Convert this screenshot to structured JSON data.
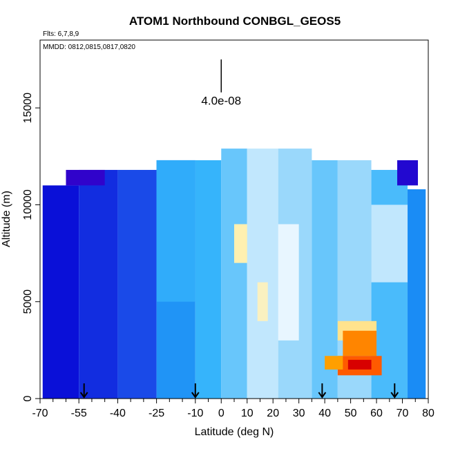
{
  "chart_data": {
    "type": "heatmap",
    "title": "ATOM1 Northbound CONBGL_GEOS5",
    "flights_label": "Flts: 6,7,8,9",
    "dates_label": "MMDD: 0812,0815,0817,0820",
    "xlabel": "Latitude (deg N)",
    "ylabel": "Altitude (m)",
    "xlim": [
      -70,
      80
    ],
    "ylim": [
      0,
      18500
    ],
    "x_ticks": [
      -70,
      -55,
      -40,
      -25,
      -10,
      0,
      10,
      20,
      30,
      40,
      50,
      60,
      70,
      80
    ],
    "x_tick_labels": [
      "-70",
      "-55",
      "-40",
      "-25",
      "-10",
      "0",
      "10",
      "20",
      "30",
      "40",
      "50",
      "60",
      "70",
      "80"
    ],
    "x_minor_ticks": [
      -65,
      -60,
      -50,
      -45,
      -35,
      -30,
      -20,
      -15,
      -5,
      5,
      15,
      25,
      35,
      45,
      55,
      65,
      75
    ],
    "y_ticks": [
      0,
      5000,
      10000,
      15000
    ],
    "y_tick_labels": [
      "0",
      "5000",
      "10000",
      "15000"
    ],
    "scale_bar": {
      "label": "4.0e-08",
      "x": 0,
      "y_bottom": 15800,
      "y_top": 17500
    },
    "flight_markers_lat": [
      -53,
      -10,
      39,
      67
    ],
    "grid": false,
    "legend": "none",
    "colormap": [
      "#3a00c8",
      "#0a10d8",
      "#1a4ae8",
      "#1a8cf5",
      "#36b4fb",
      "#9ad8fb",
      "#e8f6ff",
      "#fff0b0",
      "#ffb000",
      "#ff5a00",
      "#d80000"
    ],
    "cells": [
      {
        "x0": -69,
        "x1": -55,
        "y0": 0,
        "y1": 11000,
        "v": 0.1
      },
      {
        "x0": -55,
        "x1": -40,
        "y0": 0,
        "y1": 11800,
        "v": 0.15
      },
      {
        "x0": -40,
        "x1": -25,
        "y0": 0,
        "y1": 11800,
        "v": 0.2
      },
      {
        "x0": -25,
        "x1": -10,
        "y0": 0,
        "y1": 12300,
        "v": 0.32
      },
      {
        "x0": -10,
        "x1": 0,
        "y0": 0,
        "y1": 12300,
        "v": 0.4
      },
      {
        "x0": 0,
        "x1": 10,
        "y0": 0,
        "y1": 12900,
        "v": 0.45
      },
      {
        "x0": 10,
        "x1": 22,
        "y0": 0,
        "y1": 12900,
        "v": 0.55
      },
      {
        "x0": 22,
        "x1": 35,
        "y0": 0,
        "y1": 12900,
        "v": 0.5
      },
      {
        "x0": 35,
        "x1": 45,
        "y0": 0,
        "y1": 12300,
        "v": 0.45
      },
      {
        "x0": 45,
        "x1": 58,
        "y0": 0,
        "y1": 12300,
        "v": 0.5
      },
      {
        "x0": 58,
        "x1": 72,
        "y0": 0,
        "y1": 11800,
        "v": 0.42
      },
      {
        "x0": 72,
        "x1": 79,
        "y0": 0,
        "y1": 10800,
        "v": 0.3
      },
      {
        "x0": -25,
        "x1": -10,
        "y0": 5000,
        "y1": 12300,
        "v": 0.38
      },
      {
        "x0": 5,
        "x1": 10,
        "y0": 7000,
        "y1": 9000,
        "v": 0.7
      },
      {
        "x0": 14,
        "x1": 18,
        "y0": 4000,
        "y1": 6000,
        "v": 0.68
      },
      {
        "x0": 22,
        "x1": 30,
        "y0": 3000,
        "y1": 9000,
        "v": 0.6
      },
      {
        "x0": 58,
        "x1": 72,
        "y0": 6000,
        "y1": 10000,
        "v": 0.55
      },
      {
        "x0": 45,
        "x1": 60,
        "y0": 3000,
        "y1": 4000,
        "v": 0.72
      },
      {
        "x0": 47,
        "x1": 60,
        "y0": 2200,
        "y1": 3500,
        "v": 0.85
      },
      {
        "x0": 45,
        "x1": 62,
        "y0": 1200,
        "y1": 2200,
        "v": 0.9
      },
      {
        "x0": 49,
        "x1": 58,
        "y0": 1500,
        "y1": 2000,
        "v": 1.0
      },
      {
        "x0": 40,
        "x1": 47,
        "y0": 1500,
        "y1": 2200,
        "v": 0.82
      },
      {
        "x0": -60,
        "x1": -45,
        "y0": 11000,
        "y1": 11800,
        "v": 0.02
      },
      {
        "x0": 68,
        "x1": 76,
        "y0": 11000,
        "y1": 12300,
        "v": 0.05
      }
    ]
  }
}
